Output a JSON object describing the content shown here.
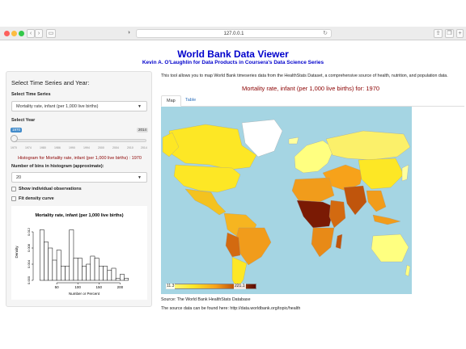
{
  "browser": {
    "url": "127.0.0.1",
    "reload_glyph": "↻",
    "back_glyph": "‹",
    "forward_glyph": "›",
    "sidebar_glyph": "▭",
    "shield_glyph": "◑",
    "share_glyph": "⇪",
    "tabs_glyph": "❐",
    "add_glyph": "+"
  },
  "header": {
    "title": "World Bank Data Viewer",
    "subtitle": "Kevin A. O'Laughlin for Data Products in Coursera's Data Science Series"
  },
  "sidebar": {
    "heading": "Select Time Series and Year:",
    "series_label": "Select Time Series",
    "series_value": "Mortality rate, infant (per 1,000 live births)",
    "year_label": "Select Year",
    "year_min": "1970",
    "year_max": "2014",
    "year_ticks": [
      "1970",
      "1974",
      "1980",
      "1986",
      "1990",
      "1994",
      "2000",
      "2004",
      "2010",
      "2014"
    ],
    "hist_caption": "Histogram for Mortality rate, infant (per 1,000 live births) : 1970",
    "bins_label": "Number of bins in histogram (approximate):",
    "bins_value": "20",
    "show_obs_label": "Show individual observations",
    "fit_density_label": "Fit density curve",
    "caret": "▼"
  },
  "main": {
    "description": "This tool allows you to map World Bank timeseries data from the HealthStats Dataset, a comprehensive source of health, nutrition, and population data.",
    "map_title": "Mortality rate, infant (per 1,000 live births) for: 1970",
    "tabs": [
      {
        "label": "Map"
      },
      {
        "label": "Table"
      }
    ],
    "legend_min": "11.3",
    "legend_max": "221.1",
    "source_line": "Source: The World Bank HealthStats Database",
    "source_url_line": "The source data can be found here: http://data.worldbank.org/topic/health"
  },
  "colors": {
    "title_blue": "#0000cc",
    "caption_red": "#8b0000",
    "ocean": "#a5d5e3"
  },
  "chart_data": {
    "type": "bar",
    "title": "Mortality rate, infant (per 1,000 live births)",
    "xlabel": "Number or Percent",
    "ylabel": "Density",
    "x_ticks": [
      "50",
      "100",
      "150",
      "200"
    ],
    "y_ticks": [
      "0.000",
      "0.004",
      "0.008",
      "0.012"
    ],
    "xlim": [
      0,
      230
    ],
    "ylim": [
      0,
      0.014
    ],
    "bin_width": 10,
    "bins_start": 10,
    "values": [
      0.0125,
      0.0095,
      0.008,
      0.005,
      0.0075,
      0.0035,
      0.0035,
      0.0125,
      0.0055,
      0.0055,
      0.0035,
      0.004,
      0.006,
      0.0055,
      0.0035,
      0.0035,
      0.0025,
      0.003,
      0.0005,
      0.0015,
      0.0005
    ]
  }
}
